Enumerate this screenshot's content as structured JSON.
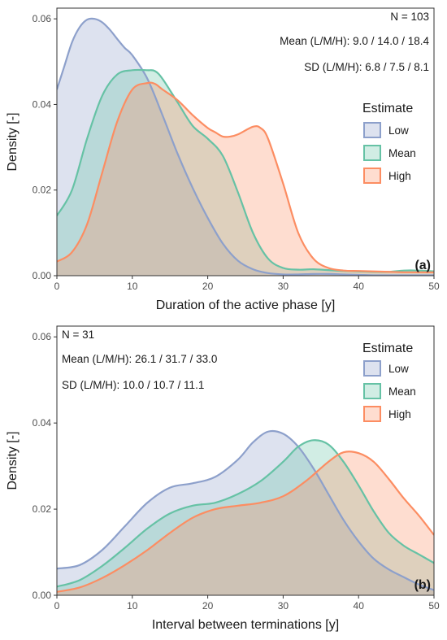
{
  "colors": {
    "Low": "#8da0cb",
    "Mean": "#66c2a5",
    "High": "#fc8d62"
  },
  "chart_data": [
    {
      "type": "area",
      "panel_tag": "(a)",
      "xlabel": "Duration of the active phase [y]",
      "ylabel": "Density [-]",
      "xlim": [
        0,
        50
      ],
      "ylim": [
        0,
        0.0625
      ],
      "xticks": [
        0,
        10,
        20,
        30,
        40,
        50
      ],
      "yticks": [
        0.0,
        0.02,
        0.04,
        0.06
      ],
      "yticklabels": [
        "0.00",
        "0.02",
        "0.04",
        "0.06"
      ],
      "annotations": [
        "N = 103",
        "Mean (L/M/H): 9.0 / 14.0 / 18.4",
        "SD (L/M/H): 6.8 / 7.5 / 8.1"
      ],
      "annotation_align": "right",
      "legend_title": "Estimate",
      "legend_position": "right",
      "grid": false,
      "series": [
        {
          "name": "Low",
          "x": [
            0,
            1,
            2,
            3,
            4,
            5,
            6,
            7,
            8,
            9,
            10,
            12,
            14,
            16,
            18,
            20,
            22,
            24,
            26,
            28,
            30,
            32,
            34,
            36,
            38,
            40,
            42,
            44,
            46,
            48,
            50
          ],
          "y": [
            0.0435,
            0.049,
            0.0545,
            0.058,
            0.0598,
            0.06,
            0.0592,
            0.0575,
            0.0553,
            0.0532,
            0.0515,
            0.046,
            0.0375,
            0.0285,
            0.0205,
            0.0135,
            0.0075,
            0.0035,
            0.0015,
            0.0006,
            0.0003,
            0.0003,
            0.0004,
            0.0004,
            0.0003,
            0.0002,
            0.0001,
            0.0001,
            0.0001,
            0.0001,
            0.0001
          ]
        },
        {
          "name": "Mean",
          "x": [
            0,
            2,
            4,
            6,
            8,
            10,
            12,
            13,
            14,
            16,
            18,
            20,
            22,
            24,
            26,
            28,
            30,
            32,
            34,
            36,
            38,
            40,
            42,
            44,
            46,
            48,
            50
          ],
          "y": [
            0.014,
            0.02,
            0.032,
            0.042,
            0.047,
            0.048,
            0.048,
            0.0478,
            0.046,
            0.0405,
            0.035,
            0.032,
            0.028,
            0.0195,
            0.01,
            0.004,
            0.0018,
            0.0014,
            0.0015,
            0.0013,
            0.0011,
            0.001,
            0.0009,
            0.0009,
            0.0012,
            0.0012,
            0.001
          ]
        },
        {
          "name": "High",
          "x": [
            0,
            2,
            4,
            6,
            8,
            10,
            12,
            13,
            14,
            16,
            18,
            20,
            21,
            22,
            23,
            24,
            26,
            27,
            28,
            30,
            32,
            34,
            36,
            38,
            40,
            42,
            44,
            46,
            48,
            50
          ],
          "y": [
            0.0033,
            0.0055,
            0.012,
            0.024,
            0.036,
            0.0435,
            0.045,
            0.0448,
            0.0435,
            0.041,
            0.0375,
            0.0345,
            0.0335,
            0.0325,
            0.0325,
            0.033,
            0.0348,
            0.0345,
            0.032,
            0.0215,
            0.01,
            0.004,
            0.0018,
            0.0012,
            0.0011,
            0.001,
            0.0009,
            0.0008,
            0.0008,
            0.0008
          ]
        }
      ]
    },
    {
      "type": "area",
      "panel_tag": "(b)",
      "xlabel": "Interval between terminations [y]",
      "ylabel": "Density [-]",
      "xlim": [
        0,
        50
      ],
      "ylim": [
        0,
        0.0625
      ],
      "xticks": [
        0,
        10,
        20,
        30,
        40,
        50
      ],
      "yticks": [
        0.0,
        0.02,
        0.04,
        0.06
      ],
      "yticklabels": [
        "0.00",
        "0.02",
        "0.04",
        "0.06"
      ],
      "annotations": [
        "N = 31",
        "Mean (L/M/H): 26.1 / 31.7 / 33.0",
        "SD (L/M/H): 10.0 / 10.7 / 11.1"
      ],
      "annotation_align": "left",
      "legend_title": "Estimate",
      "legend_position": "top-right",
      "grid": false,
      "series": [
        {
          "name": "Low",
          "x": [
            0,
            3,
            6,
            9,
            12,
            15,
            18,
            21,
            24,
            26,
            28,
            30,
            32,
            34,
            36,
            38,
            40,
            42,
            44,
            46,
            48,
            50
          ],
          "y": [
            0.0062,
            0.007,
            0.0105,
            0.016,
            0.0215,
            0.025,
            0.026,
            0.0275,
            0.0315,
            0.0355,
            0.038,
            0.0375,
            0.0345,
            0.0295,
            0.0235,
            0.0175,
            0.0125,
            0.0085,
            0.006,
            0.0042,
            0.0025,
            0.0012
          ]
        },
        {
          "name": "Mean",
          "x": [
            0,
            3,
            6,
            9,
            12,
            15,
            18,
            21,
            24,
            27,
            30,
            32,
            34,
            36,
            38,
            40,
            42,
            44,
            46,
            48,
            50
          ],
          "y": [
            0.002,
            0.0035,
            0.0068,
            0.011,
            0.0155,
            0.019,
            0.0208,
            0.0215,
            0.0235,
            0.0265,
            0.031,
            0.0345,
            0.036,
            0.035,
            0.031,
            0.0255,
            0.0195,
            0.0145,
            0.0115,
            0.0095,
            0.0075
          ]
        },
        {
          "name": "High",
          "x": [
            0,
            3,
            6,
            9,
            12,
            15,
            18,
            21,
            24,
            27,
            30,
            33,
            36,
            38,
            40,
            42,
            44,
            46,
            48,
            50
          ],
          "y": [
            0.0008,
            0.0018,
            0.004,
            0.007,
            0.0105,
            0.0145,
            0.018,
            0.02,
            0.0208,
            0.0215,
            0.023,
            0.0265,
            0.031,
            0.0332,
            0.033,
            0.031,
            0.027,
            0.0225,
            0.0185,
            0.014
          ]
        }
      ]
    }
  ]
}
